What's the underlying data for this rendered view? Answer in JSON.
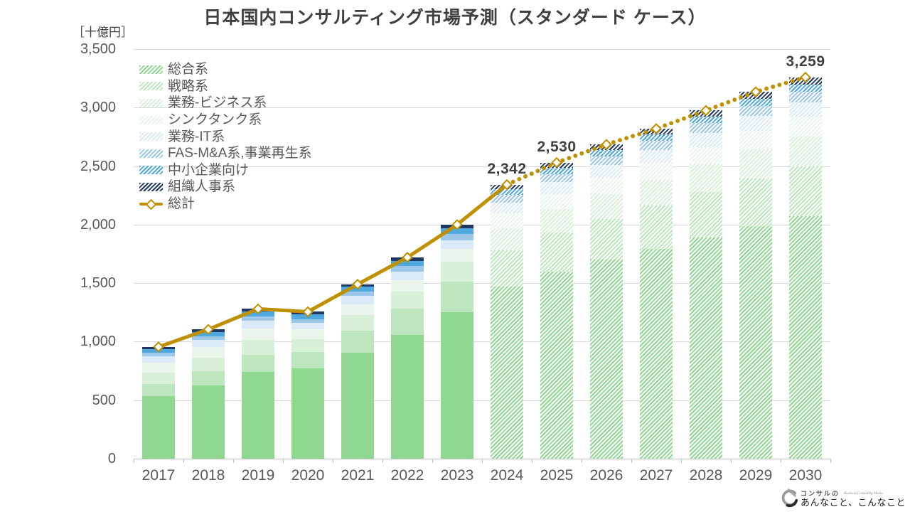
{
  "chart_data": {
    "type": "bar",
    "stacked": true,
    "title": "日本国内コンサルティング市場予測（スタンダード ケース）",
    "unit_label": "［十億円］",
    "unit": "十億円",
    "categories": [
      "2017",
      "2018",
      "2019",
      "2020",
      "2021",
      "2022",
      "2023",
      "2024",
      "2025",
      "2026",
      "2027",
      "2028",
      "2029",
      "2030"
    ],
    "forecast_from": "2024",
    "series": [
      {
        "name": "総合系",
        "color": "#90d792",
        "values": [
          532,
          625,
          740,
          772,
          905,
          1055,
          1250,
          1470,
          1600,
          1700,
          1795,
          1890,
          1985,
          2075
        ]
      },
      {
        "name": "戦略系",
        "color": "#bde6be",
        "values": [
          105,
          125,
          150,
          142,
          190,
          225,
          263,
          310,
          330,
          350,
          368,
          390,
          410,
          425
        ]
      },
      {
        "name": "業務-ビジネス系",
        "color": "#d8efd8",
        "values": [
          97,
          110,
          122,
          105,
          130,
          145,
          168,
          190,
          200,
          212,
          220,
          233,
          247,
          255
        ]
      },
      {
        "name": "シンクタンク系",
        "color": "#eaf5eb",
        "values": [
          85,
          92,
          100,
          85,
          95,
          100,
          111,
          125,
          132,
          140,
          145,
          150,
          158,
          160
        ]
      },
      {
        "name": "業務-IT系",
        "color": "#daeaf8",
        "values": [
          55,
          62,
          66,
          55,
          70,
          75,
          75,
          95,
          100,
          105,
          110,
          118,
          127,
          130
        ]
      },
      {
        "name": "FAS-M&A系,事業再生系",
        "color": "#9cc7e9",
        "values": [
          30,
          33,
          38,
          34,
          40,
          45,
          51,
          65,
          70,
          75,
          79,
          85,
          88,
          90
        ]
      },
      {
        "name": "中小企業向け",
        "color": "#4fa9df",
        "values": [
          32,
          37,
          41,
          40,
          38,
          47,
          52,
          50,
          56,
          58,
          55,
          57,
          62,
          62
        ]
      },
      {
        "name": "組織人事系",
        "color": "#1f3864",
        "values": [
          19,
          21,
          23,
          22,
          22,
          28,
          30,
          37,
          42,
          45,
          48,
          52,
          58,
          62
        ]
      }
    ],
    "line_series": {
      "name": "総計",
      "color": "#bf9000",
      "marker": "hollow-diamond",
      "solid_until": "2024",
      "values": [
        955,
        1105,
        1280,
        1255,
        1490,
        1720,
        2000,
        2342,
        2530,
        2685,
        2820,
        2975,
        3135,
        3259
      ]
    },
    "point_labels": [
      {
        "category": "2024",
        "text": "2,342"
      },
      {
        "category": "2025",
        "text": "2,530"
      },
      {
        "category": "2030",
        "text": "3,259"
      }
    ],
    "ylim": [
      0,
      3500
    ],
    "yticks": [
      "0",
      "500",
      "1,000",
      "1,500",
      "2,000",
      "2,500",
      "3,000",
      "3,500"
    ],
    "grid": true,
    "legend_position": "top-left-inside",
    "legend_order": [
      "総合系",
      "戦略系",
      "業務-ビジネス系",
      "シンクタンク系",
      "業務-IT系",
      "FAS-M&A系,事業再生系",
      "中小企業向け",
      "組織人事系",
      "総計"
    ]
  },
  "colors": {
    "grid": "#d9d9d9",
    "axis": "#bfbfbf",
    "title_text": "#3f3f3f",
    "tick_text": "#595959",
    "label_text": "#404040",
    "line": "#bf9000"
  },
  "logo": {
    "top": "コンサルの",
    "tagline": "Business Consulting Media",
    "bottom": "あんなこと、こんなこと"
  }
}
